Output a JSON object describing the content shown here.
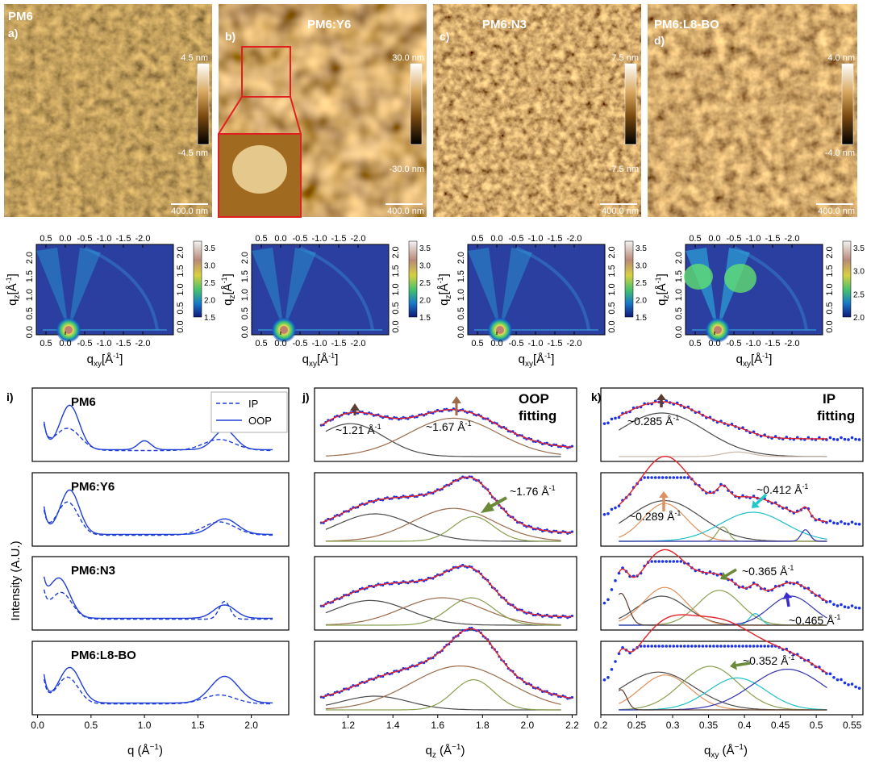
{
  "afm": [
    {
      "title": "PM6",
      "letter": "a)",
      "scale_max": "4.5 nm",
      "scale_min": "-4.5 nm",
      "scalebar": "400.0 nm"
    },
    {
      "title": "PM6:Y6",
      "letter": "b)",
      "scale_max": "30.0 nm",
      "scale_min": "-30.0 nm",
      "scalebar": "400.0 nm"
    },
    {
      "title": "PM6:N3",
      "letter": "c)",
      "scale_max": "7.5 nm",
      "scale_min": "-7.5 nm",
      "scalebar": "400.0 nm"
    },
    {
      "title": "PM6:L8-BO",
      "letter": "d)",
      "scale_max": "4.0 nm",
      "scale_min": "-4.0 nm",
      "scalebar": "400.0 nm"
    }
  ],
  "giwaxs": {
    "top_ticks": [
      "0.5",
      "0.0",
      "-0.5",
      "-1.0",
      "-1.5",
      "-2.0"
    ],
    "bottom_ticks": [
      "0.5",
      "0.0",
      "-0.5",
      "-1.0",
      "-1.5",
      "-2.0"
    ],
    "left_ticks": [
      "0.0",
      "0.5",
      "1.0",
      "1.5",
      "2.0"
    ],
    "right_ticks": [
      "0.0",
      "0.5",
      "1.0",
      "1.5",
      "2.0"
    ],
    "xlabel_main": "q",
    "xlabel_sub": "xy",
    "xlabel_unit": "[Å",
    "ylabel_main": "q",
    "ylabel_sub": "z",
    "ylabel_unit": "[Å",
    "unit_sup": "-1",
    "unit_close": "]",
    "colorbars": [
      [
        "3.5",
        "3.0",
        "2.5",
        "2.0",
        "1.5"
      ],
      [
        "3.5",
        "3.0",
        "2.5",
        "2.0",
        "1.5"
      ],
      [
        "3.5",
        "3.0",
        "2.5",
        "2.0",
        "1.5"
      ],
      [
        "3.5",
        "3.0",
        "2.5",
        "2.0"
      ]
    ]
  },
  "profiles": {
    "letter": "i)",
    "ylabel": "Intensity (A.U.)",
    "xlabel_main": "q (Å",
    "xlabel_sup": "−1",
    "xlabel_close": ")",
    "xticks": [
      "0.0",
      "0.5",
      "1.0",
      "1.5",
      "2.0"
    ],
    "legend": [
      "IP",
      "OOP"
    ],
    "samples": [
      "PM6",
      "PM6:Y6",
      "PM6:N3",
      "PM6:L8-BO"
    ]
  },
  "oop_fit": {
    "letter": "j)",
    "title_line1": "OOP",
    "title_line2": "fitting",
    "xticks": [
      "1.2",
      "1.4",
      "1.6",
      "1.8",
      "2.0",
      "2.2"
    ],
    "xlabel_main": "q",
    "xlabel_sub": "z",
    "xlabel_unit": " (Å",
    "xlabel_sup": "−1",
    "xlabel_close": ")",
    "annotations": {
      "a1": "~1.21 Å",
      "a2": "~1.67 Å",
      "a3": "~1.76 Å"
    },
    "sup": "-1"
  },
  "ip_fit": {
    "letter": "k)",
    "title_line1": "IP",
    "title_line2": "fitting",
    "xticks": [
      "0.2",
      "0.25",
      "0.3",
      "0.35",
      "0.4",
      "0.45",
      "0.5",
      "0.55"
    ],
    "xlabel_main": "q",
    "xlabel_sub": "xy",
    "xlabel_unit": " (Å",
    "xlabel_sup": "−1",
    "xlabel_close": ")",
    "annotations": {
      "a1": "~0.285 Å",
      "a2": "~0.412 Å",
      "a3": "~0.289 Å",
      "a4": "~0.365 Å",
      "a5": "~0.465 Å",
      "a6": "~0.352 Å"
    },
    "sup": "-1"
  },
  "colors": {
    "ip_oop_line": "#1f3fd6",
    "fit_total": "#e2222a",
    "data_dots": "#1a33e6",
    "peak_dark": "#4a4a4a",
    "peak_brown": "#9a6a4a",
    "peak_olive": "#8aa050",
    "peak_orange": "#e0905a",
    "peak_cyan": "#20c0c8",
    "peak_indigo": "#3030b0",
    "arrow_dark": "#5a3c30",
    "arrow_brown": "#a06a48",
    "arrow_olive": "#6a8a3a",
    "arrow_cyan": "#20c8c8",
    "arrow_orange": "#e09060",
    "arrow_indigo": "#3a2ad0"
  }
}
